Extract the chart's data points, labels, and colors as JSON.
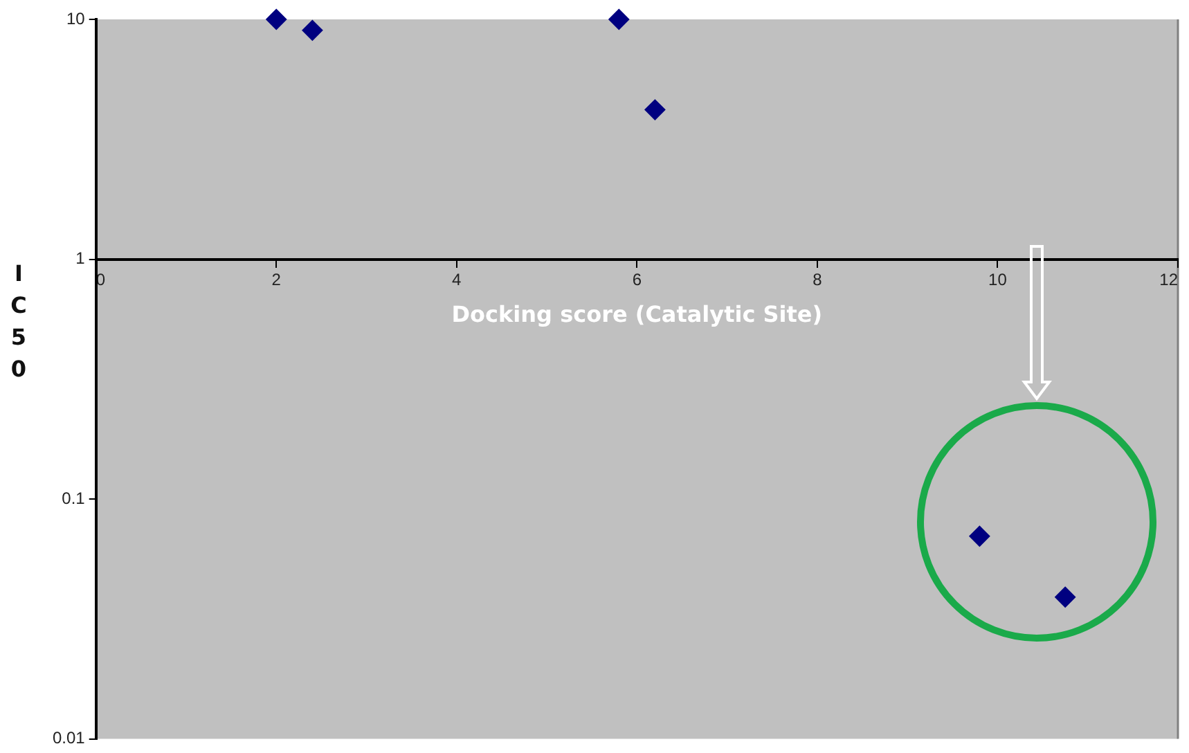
{
  "chart_data": {
    "type": "scatter",
    "xlabel": "Docking score (Catalytic Site)",
    "ylabel": "IC50",
    "x": [
      2,
      2.4,
      5.8,
      6.2,
      9.8,
      10.75
    ],
    "values": [
      10,
      9,
      10,
      4.2,
      0.07,
      0.039
    ],
    "color": "#000080",
    "marker": "diamond",
    "log": "y",
    "xlim": [
      0,
      12
    ],
    "xticks": [
      0,
      2,
      4,
      6,
      8,
      10,
      12
    ],
    "ylim": [
      0.01,
      10
    ],
    "yticks": [
      {
        "value": 0.01,
        "label": "0.01"
      },
      {
        "value": 0.1,
        "label": "0.1"
      },
      1,
      10
    ]
  }
}
